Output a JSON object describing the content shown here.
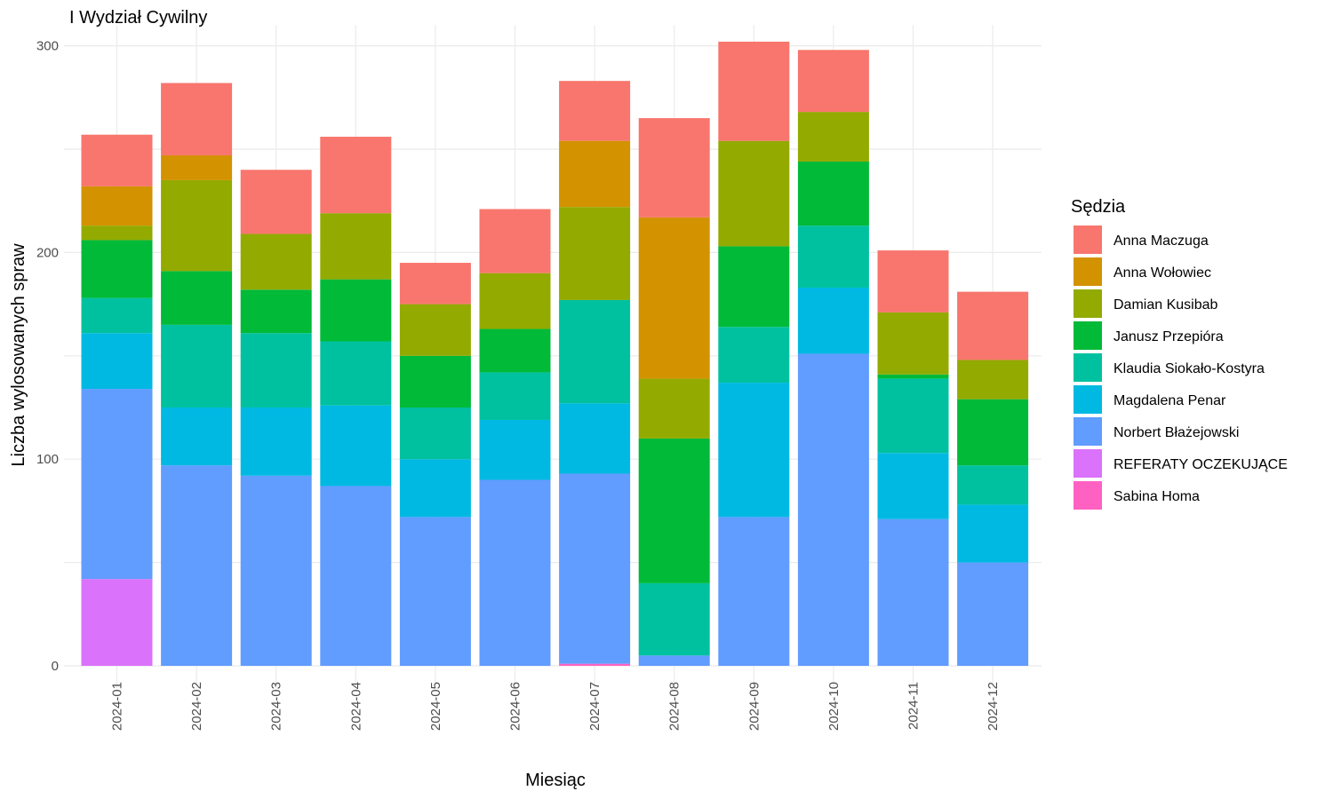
{
  "chart_data": {
    "type": "bar",
    "stacked": true,
    "title": "I Wydział Cywilny",
    "xlabel": "Miesiąc",
    "ylabel": "Liczba wylosowanych spraw",
    "ylim": [
      0,
      310
    ],
    "yticks": [
      0,
      100,
      200,
      300
    ],
    "grid": true,
    "legend_title": "Sędzia",
    "legend_position": "right",
    "categories": [
      "2024-01",
      "2024-02",
      "2024-03",
      "2024-04",
      "2024-05",
      "2024-06",
      "2024-07",
      "2024-08",
      "2024-09",
      "2024-10",
      "2024-11",
      "2024-12"
    ],
    "series": [
      {
        "name": "Anna Maczuga",
        "color": "#F8766D",
        "values": [
          25,
          35,
          31,
          37,
          20,
          31,
          29,
          48,
          48,
          30,
          30,
          33
        ]
      },
      {
        "name": "Anna Wołowiec",
        "color": "#D39200",
        "values": [
          19,
          12,
          0,
          0,
          0,
          0,
          32,
          78,
          0,
          0,
          0,
          0
        ]
      },
      {
        "name": "Damian Kusibab",
        "color": "#93AA00",
        "values": [
          7,
          44,
          27,
          32,
          25,
          27,
          45,
          29,
          51,
          24,
          30,
          19
        ]
      },
      {
        "name": "Janusz Przepióra",
        "color": "#00BA38",
        "values": [
          28,
          26,
          21,
          30,
          25,
          21,
          0,
          70,
          39,
          31,
          2,
          32
        ]
      },
      {
        "name": "Klaudia Siokało-Kostyra",
        "color": "#00C19F",
        "values": [
          17,
          40,
          36,
          31,
          25,
          23,
          50,
          35,
          27,
          30,
          36,
          19
        ]
      },
      {
        "name": "Magdalena Penar",
        "color": "#00B9E3",
        "values": [
          27,
          28,
          33,
          39,
          28,
          29,
          34,
          0,
          65,
          32,
          32,
          28
        ]
      },
      {
        "name": "Norbert Błażejowski",
        "color": "#619CFF",
        "values": [
          92,
          97,
          92,
          87,
          72,
          90,
          92,
          5,
          72,
          151,
          71,
          50
        ]
      },
      {
        "name": "REFERATY OCZEKUJĄCE",
        "color": "#DB72FB",
        "values": [
          42,
          0,
          0,
          0,
          0,
          0,
          0,
          0,
          0,
          0,
          0,
          0
        ]
      },
      {
        "name": "Sabina Homa",
        "color": "#FF61C3",
        "values": [
          0,
          0,
          0,
          0,
          0,
          0,
          1,
          0,
          0,
          0,
          0,
          0
        ]
      }
    ]
  }
}
